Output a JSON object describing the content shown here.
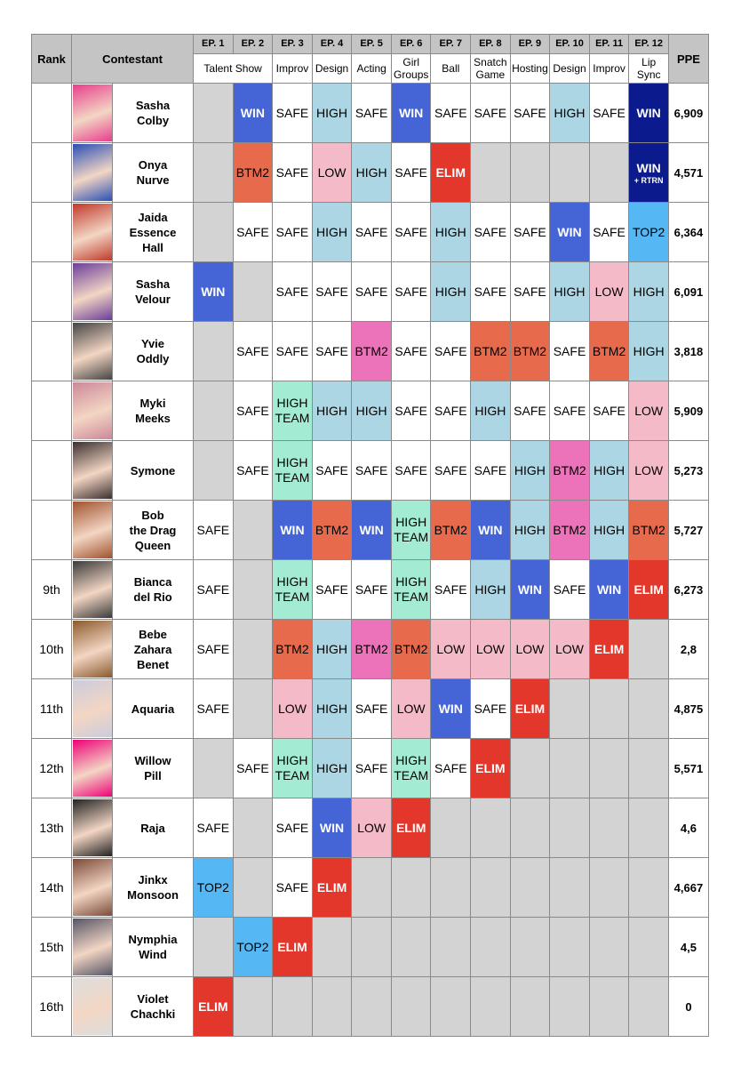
{
  "header": {
    "rank": "Rank",
    "contestant": "Contestant",
    "ppe": "PPE",
    "episodes": [
      "EP. 1",
      "EP. 2",
      "EP. 3",
      "EP. 4",
      "EP. 5",
      "EP. 6",
      "EP. 7",
      "EP. 8",
      "EP. 9",
      "EP. 10",
      "EP. 11",
      "EP. 12"
    ],
    "themes": [
      "Talent Show",
      null,
      "Improv",
      "Design",
      "Acting",
      "Girl Groups",
      "Ball",
      "Snatch Game",
      "Hosting",
      "Design",
      "Improv",
      "Lip Sync"
    ]
  },
  "styles": {
    "WIN": {
      "fill": "#4565d6",
      "text": "#ffffff",
      "bold": true
    },
    "ELIM": {
      "fill": "#e3372b",
      "text": "#ffffff",
      "bold": true
    },
    "SAFE": {
      "fill": "#ffffff",
      "text": "#000000"
    },
    "HIGH": {
      "fill": "#acd6e4",
      "text": "#000000"
    },
    "LOW": {
      "fill": "#f4bac8",
      "text": "#000000"
    },
    "BTM2": {
      "fill": "#e86a4d",
      "text": "#000000"
    },
    "TOP2": {
      "fill": "#55b8f4",
      "text": "#000000"
    },
    "HIGH TEAM": {
      "fill": "#a3ecd3",
      "text": "#000000"
    },
    "empty": {
      "fill": "#d3d3d3"
    }
  },
  "rows": [
    {
      "rank": null,
      "name": [
        "Sasha",
        "Colby"
      ],
      "results": [
        null,
        "WIN",
        "SAFE",
        "HIGH",
        "SAFE",
        "WIN",
        "SAFE",
        "SAFE",
        "SAFE",
        "HIGH",
        "SAFE",
        {
          "text": "WIN",
          "color": "#0b1a8c"
        }
      ],
      "ppe": "6,909"
    },
    {
      "rank": null,
      "name": [
        "Onya",
        "Nurve"
      ],
      "results": [
        null,
        "BTM2",
        "SAFE",
        "LOW",
        "HIGH",
        "SAFE",
        "ELIM",
        null,
        null,
        null,
        null,
        {
          "text": "WIN",
          "note": "+ RTRN",
          "color": "#0b1a8c"
        }
      ],
      "ppe": "4,571"
    },
    {
      "rank": null,
      "name": [
        "Jaida",
        "Essence",
        "Hall"
      ],
      "results": [
        null,
        "SAFE",
        "SAFE",
        "HIGH",
        "SAFE",
        "SAFE",
        "HIGH",
        "SAFE",
        "SAFE",
        "WIN",
        "SAFE",
        "TOP2"
      ],
      "ppe": "6,364"
    },
    {
      "rank": null,
      "name": [
        "Sasha",
        "Velour"
      ],
      "results": [
        "WIN",
        null,
        "SAFE",
        "SAFE",
        "SAFE",
        "SAFE",
        "HIGH",
        "SAFE",
        "SAFE",
        "HIGH",
        "LOW",
        "HIGH"
      ],
      "ppe": "6,091"
    },
    {
      "rank": null,
      "name": [
        "Yvie",
        "Oddly"
      ],
      "results": [
        null,
        "SAFE",
        "SAFE",
        "SAFE",
        {
          "text": "BTM2",
          "color": "#ec72b9"
        },
        "SAFE",
        "SAFE",
        "BTM2",
        "BTM2",
        "SAFE",
        "BTM2",
        "HIGH"
      ],
      "ppe": "3,818"
    },
    {
      "rank": null,
      "name": [
        "Myki",
        "Meeks"
      ],
      "results": [
        null,
        "SAFE",
        "HIGH TEAM",
        "HIGH",
        "HIGH",
        "SAFE",
        "SAFE",
        "HIGH",
        "SAFE",
        "SAFE",
        "SAFE",
        "LOW"
      ],
      "ppe": "5,909"
    },
    {
      "rank": null,
      "name": [
        "Symone"
      ],
      "results": [
        null,
        "SAFE",
        "HIGH TEAM",
        "SAFE",
        "SAFE",
        "SAFE",
        "SAFE",
        "SAFE",
        "HIGH",
        {
          "text": "BTM2",
          "color": "#ec72b9"
        },
        "HIGH",
        "LOW"
      ],
      "ppe": "5,273"
    },
    {
      "rank": null,
      "name": [
        "Bob",
        "the Drag",
        "Queen"
      ],
      "results": [
        "SAFE",
        null,
        "WIN",
        "BTM2",
        "WIN",
        "HIGH TEAM",
        "BTM2",
        "WIN",
        "HIGH",
        {
          "text": "BTM2",
          "color": "#ec72b9"
        },
        "HIGH",
        "BTM2"
      ],
      "ppe": "5,727"
    },
    {
      "rank": "9th",
      "name": [
        "Bianca",
        "del Rio"
      ],
      "results": [
        "SAFE",
        null,
        "HIGH TEAM",
        "SAFE",
        "SAFE",
        "HIGH TEAM",
        "SAFE",
        "HIGH",
        "WIN",
        "SAFE",
        "WIN",
        "ELIM"
      ],
      "ppe": "6,273"
    },
    {
      "rank": "10th",
      "name": [
        "Bebe",
        "Zahara",
        "Benet"
      ],
      "results": [
        "SAFE",
        null,
        "BTM2",
        "HIGH",
        {
          "text": "BTM2",
          "color": "#ec72b9"
        },
        "BTM2",
        "LOW",
        "LOW",
        "LOW",
        "LOW",
        "ELIM",
        null
      ],
      "ppe": "2,8"
    },
    {
      "rank": "11th",
      "name": [
        "Aquaria"
      ],
      "results": [
        "SAFE",
        null,
        "LOW",
        "HIGH",
        "SAFE",
        "LOW",
        "WIN",
        "SAFE",
        "ELIM",
        null,
        null,
        null
      ],
      "ppe": "4,875"
    },
    {
      "rank": "12th",
      "name": [
        "Willow",
        "Pill"
      ],
      "results": [
        null,
        "SAFE",
        "HIGH TEAM",
        "HIGH",
        "SAFE",
        "HIGH TEAM",
        "SAFE",
        "ELIM",
        null,
        null,
        null,
        null
      ],
      "ppe": "5,571"
    },
    {
      "rank": "13th",
      "name": [
        "Raja"
      ],
      "results": [
        "SAFE",
        null,
        "SAFE",
        "WIN",
        "LOW",
        "ELIM",
        null,
        null,
        null,
        null,
        null,
        null
      ],
      "ppe": "4,6"
    },
    {
      "rank": "14th",
      "name": [
        "Jinkx",
        "Monsoon"
      ],
      "results": [
        "TOP2",
        null,
        "SAFE",
        "ELIM",
        null,
        null,
        null,
        null,
        null,
        null,
        null,
        null
      ],
      "ppe": "4,667"
    },
    {
      "rank": "15th",
      "name": [
        "Nymphia",
        "Wind"
      ],
      "results": [
        null,
        "TOP2",
        "ELIM",
        null,
        null,
        null,
        null,
        null,
        null,
        null,
        null,
        null
      ],
      "ppe": "4,5"
    },
    {
      "rank": "16th",
      "name": [
        "Violet",
        "Chachki"
      ],
      "results": [
        "ELIM",
        null,
        null,
        null,
        null,
        null,
        null,
        null,
        null,
        null,
        null,
        null
      ],
      "ppe": "0"
    }
  ]
}
